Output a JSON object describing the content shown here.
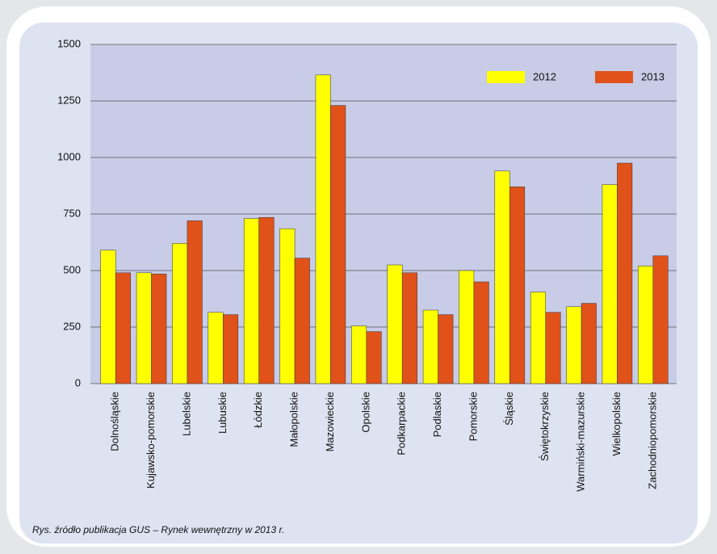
{
  "chart_data": {
    "type": "bar",
    "source": "Rys. źródło publikacja GUS – Rynek wewnętrzny w 2013 r.",
    "categories": [
      "Dolnośląskie",
      "Kujawsko-pomorskie",
      "Lubelskie",
      "Lubuskie",
      "Łódzkie",
      "Małopolskie",
      "Mazowieckie",
      "Opolskie",
      "Podkarpackie",
      "Podlaskie",
      "Pomorskie",
      "Śląskie",
      "Świętokrzyskie",
      "Warmiński-mazurskie",
      "Wielkopolskie",
      "Zachodniopomorskie"
    ],
    "series": [
      {
        "name": "2012",
        "color": "#ffff00",
        "values": [
          590,
          490,
          620,
          315,
          730,
          685,
          1365,
          255,
          525,
          325,
          500,
          940,
          405,
          340,
          880,
          520
        ]
      },
      {
        "name": "2013",
        "color": "#e0521a",
        "values": [
          490,
          485,
          720,
          305,
          735,
          555,
          1230,
          230,
          490,
          305,
          450,
          870,
          315,
          355,
          975,
          565
        ]
      }
    ],
    "ylim": [
      0,
      1500
    ],
    "yticks": [
      0,
      250,
      500,
      750,
      1000,
      1250,
      1500
    ],
    "grid": true,
    "legend": "top-right"
  }
}
